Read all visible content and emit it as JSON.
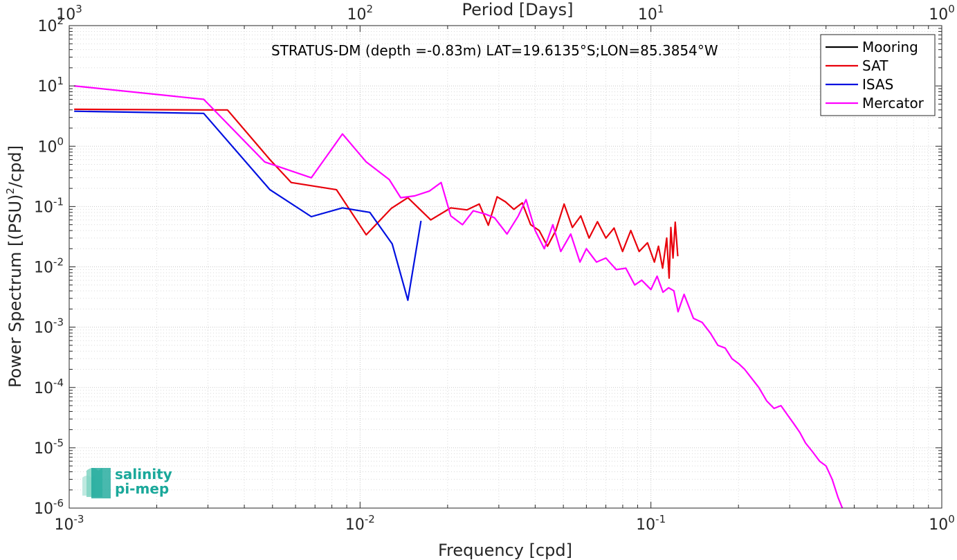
{
  "chart_data": {
    "type": "line",
    "annotation": "STRATUS-DM (depth =-0.83m) LAT=19.6135°S;LON=85.3854°W",
    "xlabel": "Frequency [cpd]",
    "ylabel_main": "Power Spectrum [(PSU)",
    "ylabel_sup": "2",
    "ylabel_tail": "/cpd]",
    "top_xlabel": "Period [Days]",
    "x_scale": "log",
    "y_scale": "log",
    "xlim": [
      0.001,
      1
    ],
    "ylim": [
      1e-06,
      100
    ],
    "grid": true,
    "legend_position": "top-right",
    "x_ticks": [
      {
        "value": 0.001,
        "base": "10",
        "exp": "-3"
      },
      {
        "value": 0.01,
        "base": "10",
        "exp": "-2"
      },
      {
        "value": 0.1,
        "base": "10",
        "exp": "-1"
      },
      {
        "value": 1,
        "base": "10",
        "exp": "0"
      }
    ],
    "top_ticks": [
      {
        "value": 0.001,
        "base": "10",
        "exp": "3"
      },
      {
        "value": 0.01,
        "base": "10",
        "exp": "2"
      },
      {
        "value": 0.1,
        "base": "10",
        "exp": "1"
      },
      {
        "value": 1,
        "base": "10",
        "exp": "0"
      }
    ],
    "y_ticks": [
      {
        "value": 100,
        "base": "10",
        "exp": "2"
      },
      {
        "value": 10,
        "base": "10",
        "exp": "1"
      },
      {
        "value": 1,
        "base": "10",
        "exp": "0"
      },
      {
        "value": 0.1,
        "base": "10",
        "exp": "-1"
      },
      {
        "value": 0.01,
        "base": "10",
        "exp": "-2"
      },
      {
        "value": 0.001,
        "base": "10",
        "exp": "-3"
      },
      {
        "value": 0.0001,
        "base": "10",
        "exp": "-4"
      },
      {
        "value": 1e-05,
        "base": "10",
        "exp": "-5"
      },
      {
        "value": 1e-06,
        "base": "10",
        "exp": "-6"
      }
    ],
    "series": [
      {
        "name": "Mooring",
        "color": "#000000",
        "x": [],
        "y": []
      },
      {
        "name": "SAT",
        "color": "#e8000b",
        "x": [
          0.00104,
          0.0029,
          0.0035,
          0.0049,
          0.0058,
          0.0083,
          0.0105,
          0.0128,
          0.0146,
          0.0175,
          0.0205,
          0.0233,
          0.0257,
          0.0276,
          0.0296,
          0.0316,
          0.0338,
          0.0361,
          0.0386,
          0.0413,
          0.0441,
          0.0471,
          0.0503,
          0.0537,
          0.0574,
          0.0613,
          0.0655,
          0.07,
          0.0747,
          0.0799,
          0.0853,
          0.0911,
          0.0973,
          0.1028,
          0.1062,
          0.1097,
          0.1133,
          0.1155,
          0.1171,
          0.1191,
          0.1212,
          0.1237
        ],
        "y": [
          4.1,
          4.0,
          4.0,
          0.6,
          0.25,
          0.19,
          0.034,
          0.093,
          0.14,
          0.06,
          0.095,
          0.088,
          0.11,
          0.049,
          0.145,
          0.12,
          0.09,
          0.115,
          0.05,
          0.04,
          0.022,
          0.04,
          0.11,
          0.045,
          0.07,
          0.03,
          0.056,
          0.03,
          0.044,
          0.018,
          0.04,
          0.018,
          0.025,
          0.012,
          0.022,
          0.0095,
          0.03,
          0.0065,
          0.045,
          0.014,
          0.055,
          0.015
        ]
      },
      {
        "name": "ISAS",
        "color": "#0010e0",
        "x": [
          0.00104,
          0.0029,
          0.0049,
          0.0068,
          0.0087,
          0.0108,
          0.0129,
          0.0146,
          0.0162
        ],
        "y": [
          3.8,
          3.5,
          0.19,
          0.068,
          0.095,
          0.08,
          0.024,
          0.0028,
          0.058
        ]
      },
      {
        "name": "Mercator",
        "color": "#ff00ff",
        "x": [
          0.00104,
          0.0029,
          0.0047,
          0.0068,
          0.0087,
          0.0105,
          0.0126,
          0.0138,
          0.0154,
          0.0173,
          0.019,
          0.0205,
          0.0225,
          0.0245,
          0.027,
          0.029,
          0.032,
          0.035,
          0.0372,
          0.04,
          0.043,
          0.046,
          0.049,
          0.053,
          0.057,
          0.06,
          0.065,
          0.07,
          0.076,
          0.082,
          0.088,
          0.093,
          0.1,
          0.105,
          0.11,
          0.115,
          0.12,
          0.124,
          0.13,
          0.14,
          0.15,
          0.16,
          0.17,
          0.18,
          0.19,
          0.2,
          0.21,
          0.22,
          0.235,
          0.25,
          0.265,
          0.28,
          0.295,
          0.31,
          0.325,
          0.34,
          0.36,
          0.38,
          0.4,
          0.42,
          0.44,
          0.455
        ],
        "y": [
          10,
          6,
          0.55,
          0.3,
          1.6,
          0.55,
          0.28,
          0.14,
          0.15,
          0.18,
          0.25,
          0.07,
          0.05,
          0.085,
          0.075,
          0.065,
          0.035,
          0.07,
          0.13,
          0.04,
          0.02,
          0.05,
          0.018,
          0.035,
          0.012,
          0.02,
          0.012,
          0.014,
          0.009,
          0.0095,
          0.005,
          0.006,
          0.0042,
          0.007,
          0.0038,
          0.0045,
          0.004,
          0.0018,
          0.0035,
          0.0014,
          0.0012,
          0.0008,
          0.0005,
          0.00045,
          0.0003,
          0.00025,
          0.0002,
          0.00015,
          0.0001,
          6e-05,
          4.5e-05,
          5e-05,
          3.5e-05,
          2.5e-05,
          1.8e-05,
          1.2e-05,
          8.5e-06,
          6e-06,
          5e-06,
          3e-06,
          1.5e-06,
          1e-06
        ]
      }
    ]
  },
  "logo": {
    "line1": "salinity",
    "line2": "pi-mep",
    "color": "#1aa89a"
  }
}
